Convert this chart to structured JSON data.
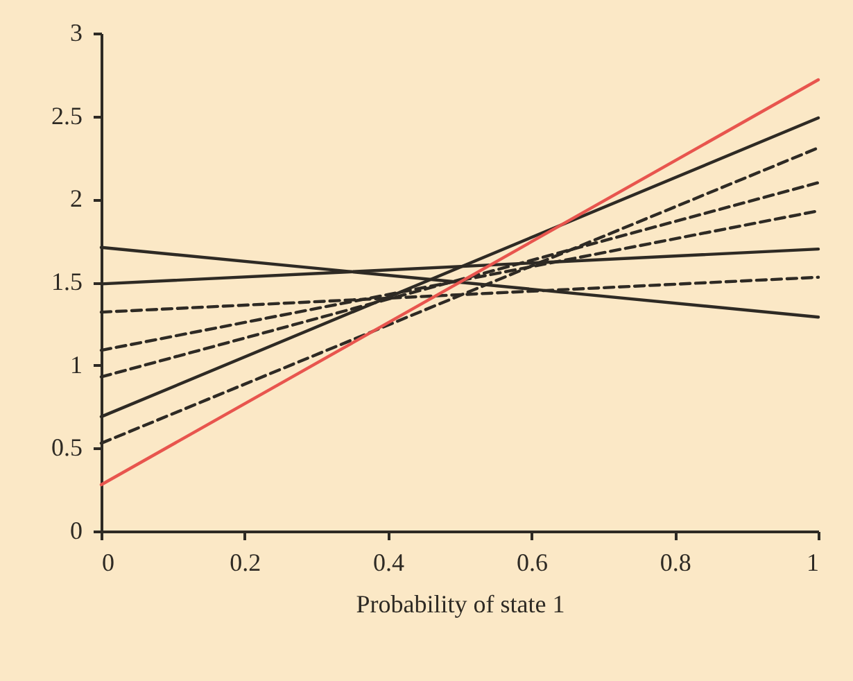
{
  "chart_data": {
    "type": "line",
    "xlabel": "Probability of state 1",
    "x": [
      0,
      1
    ],
    "xlim": [
      0,
      1
    ],
    "xticks": [
      0,
      0.2,
      0.4,
      0.6,
      0.8,
      1
    ],
    "ylim": [
      0,
      3
    ],
    "yticks": [
      0,
      0.5,
      1,
      1.5,
      2,
      2.5,
      3
    ],
    "grid": false,
    "legend": false,
    "marker": "none",
    "series": [
      {
        "color": "#2e2a24",
        "line_style": "solid",
        "values": [
          1.71,
          1.29
        ]
      },
      {
        "color": "#2e2a24",
        "line_style": "solid",
        "values": [
          1.49,
          1.7
        ]
      },
      {
        "color": "#2e2a24",
        "line_style": "dashed",
        "values": [
          1.32,
          1.53
        ]
      },
      {
        "color": "#2e2a24",
        "line_style": "dashed",
        "values": [
          1.09,
          1.93
        ]
      },
      {
        "color": "#2e2a24",
        "line_style": "dashed",
        "values": [
          0.93,
          2.1
        ]
      },
      {
        "color": "#2e2a24",
        "line_style": "solid",
        "values": [
          0.69,
          2.49
        ]
      },
      {
        "color": "#2e2a24",
        "line_style": "dashed",
        "values": [
          0.53,
          2.31
        ]
      },
      {
        "color": "#e8554e",
        "line_style": "solid",
        "values": [
          0.28,
          2.72
        ]
      }
    ]
  }
}
